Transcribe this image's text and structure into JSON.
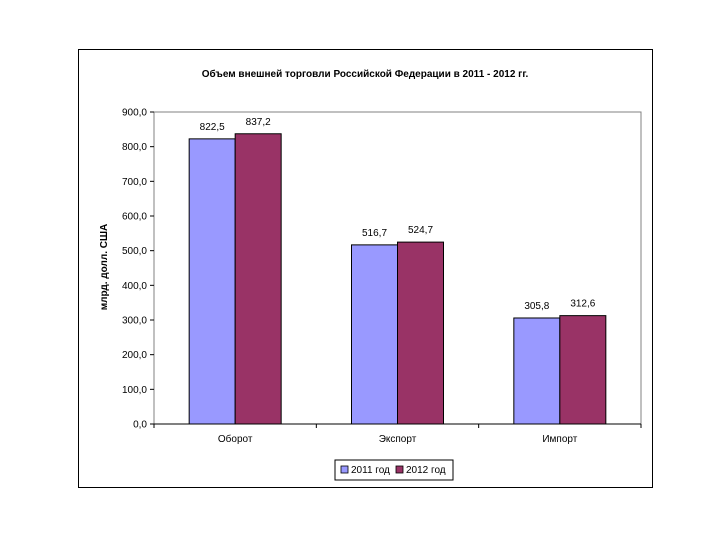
{
  "chart_data": {
    "type": "bar",
    "title": "Объем внешней торговли Российской Федерации в 2011 - 2012 гг.",
    "xlabel": "",
    "ylabel": "млрд. долл. США",
    "categories": [
      "Оборот",
      "Экспорт",
      "Импорт"
    ],
    "series": [
      {
        "name": "2011 год",
        "values": [
          822.5,
          516.7,
          305.8
        ],
        "color": "#9999ff",
        "labels": [
          "822,5",
          "516,7",
          "305,8"
        ]
      },
      {
        "name": "2012 год",
        "values": [
          837.2,
          524.7,
          312.6
        ],
        "color": "#993366",
        "labels": [
          "837,2",
          "524,7",
          "312,6"
        ]
      }
    ],
    "ylim": [
      0,
      900
    ],
    "yticks": [
      0,
      100,
      200,
      300,
      400,
      500,
      600,
      700,
      800,
      900
    ],
    "ytick_labels": [
      "0,0",
      "100,0",
      "200,0",
      "300,0",
      "400,0",
      "500,0",
      "600,0",
      "700,0",
      "800,0",
      "900,0"
    ],
    "grid": false,
    "plot_background": "#ffffff",
    "legend_position": "bottom"
  }
}
